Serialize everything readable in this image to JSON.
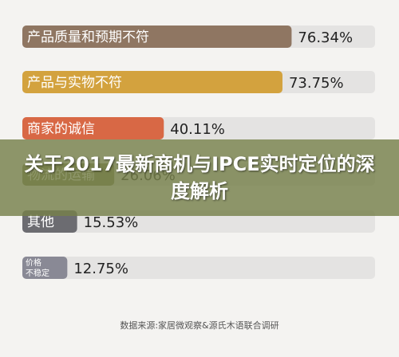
{
  "chart_data": {
    "type": "bar",
    "orientation": "horizontal",
    "categories": [
      "产品质量和预期不符",
      "产品与实物不符",
      "商家的诚信",
      "物流的运输",
      "其他",
      "价格\n不稳定"
    ],
    "values": [
      76.34,
      73.75,
      40.11,
      26.06,
      15.53,
      12.75
    ],
    "value_labels": [
      "76.34%",
      "73.75%",
      "40.11%",
      "26.06%",
      "15.53%",
      "12.75%"
    ],
    "xlim": [
      0,
      100
    ],
    "colors": [
      "#8f7662",
      "#d3a23e",
      "#d86845",
      "#7f8656",
      "#6c6c71",
      "#898995"
    ],
    "track_color": "#e4e3e2",
    "title": "",
    "xlabel": "",
    "ylabel": ""
  },
  "overlay": {
    "title": "关于2017最新商机与IPCE实时定位的深度解析"
  },
  "source": "数据来源:家居微观察&源氏木语联合调研"
}
